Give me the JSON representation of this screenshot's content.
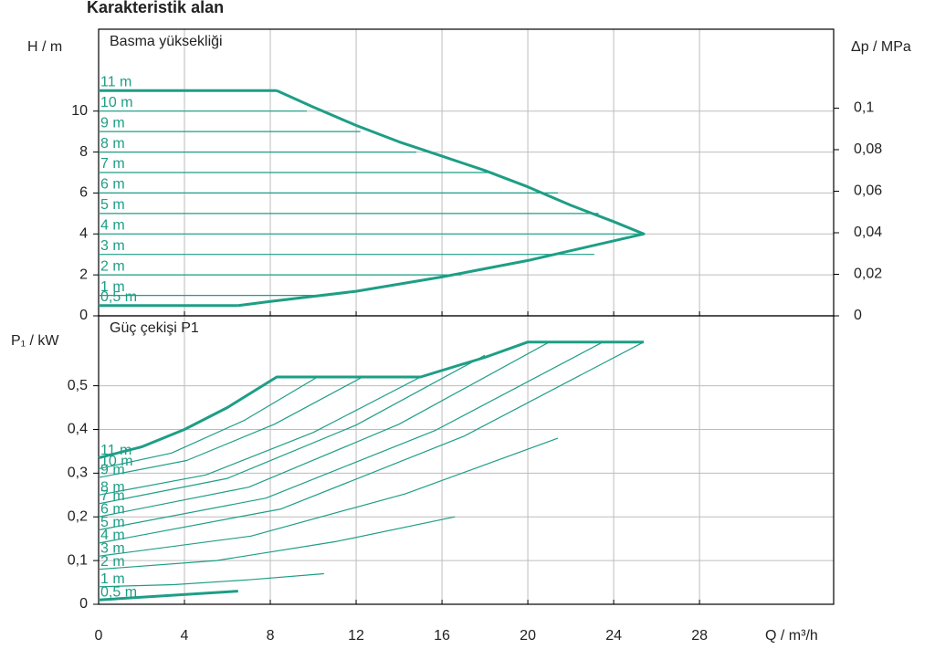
{
  "chart_data": [
    {
      "type": "line",
      "title": "Karakteristik alan",
      "subtitle": "Basma yüksekliği",
      "y_label": "H / m",
      "y2_label": "Δp / MPa",
      "xlim": [
        0,
        34.25
      ],
      "xticks": [
        0,
        4,
        8,
        12,
        16,
        20,
        24,
        28
      ],
      "ylim": [
        0,
        14
      ],
      "yticks": [
        0,
        2,
        4,
        6,
        8,
        10
      ],
      "y2lim": [
        0,
        0.138
      ],
      "y2ticks": [
        {
          "value": 0,
          "label": "0"
        },
        {
          "value": 0.02,
          "label": "0,02"
        },
        {
          "value": 0.04,
          "label": "0,04"
        },
        {
          "value": 0.06,
          "label": "0,06"
        },
        {
          "value": 0.08,
          "label": "0,08"
        },
        {
          "value": 0.1,
          "label": "0,1"
        }
      ],
      "grid": true,
      "series": [
        {
          "name": "11 m",
          "color": "#1e9e86",
          "line_width": 3,
          "x": [
            0,
            8.3
          ],
          "values": [
            11,
            11
          ]
        },
        {
          "name": "10 m",
          "color": "#1e9e86",
          "line_width": 1.2,
          "x": [
            0,
            9.7
          ],
          "values": [
            10,
            10
          ]
        },
        {
          "name": "9 m",
          "color": "#1e9e86",
          "line_width": 1.2,
          "x": [
            0,
            12.2
          ],
          "values": [
            9,
            9
          ]
        },
        {
          "name": "8 m",
          "color": "#1e9e86",
          "line_width": 1.2,
          "x": [
            0,
            14.8
          ],
          "values": [
            8,
            8
          ]
        },
        {
          "name": "7 m",
          "color": "#1e9e86",
          "line_width": 1.2,
          "x": [
            0,
            18.4
          ],
          "values": [
            7,
            7
          ]
        },
        {
          "name": "6 m",
          "color": "#1e9e86",
          "line_width": 1.2,
          "x": [
            0,
            21.4
          ],
          "values": [
            6,
            6
          ]
        },
        {
          "name": "5 m",
          "color": "#1e9e86",
          "line_width": 1.2,
          "x": [
            0,
            23.3
          ],
          "values": [
            5,
            5
          ]
        },
        {
          "name": "4 m",
          "color": "#1e9e86",
          "line_width": 1.2,
          "x": [
            0,
            25.4
          ],
          "values": [
            4,
            4
          ]
        },
        {
          "name": "3 m",
          "color": "#1e9e86",
          "line_width": 1.2,
          "x": [
            0,
            23.1
          ],
          "values": [
            3,
            3
          ]
        },
        {
          "name": "2 m",
          "color": "#1e9e86",
          "line_width": 1.2,
          "x": [
            0,
            16.9
          ],
          "values": [
            2,
            2
          ]
        },
        {
          "name": "1 m",
          "color": "#1e9e86",
          "line_width": 1.2,
          "x": [
            0,
            10.7
          ],
          "values": [
            1,
            1
          ]
        },
        {
          "name": "0,5 m",
          "color": "#1e9e86",
          "line_width": 3,
          "x": [
            0,
            6.5
          ],
          "values": [
            0.5,
            0.5
          ]
        },
        {
          "color": "#1e9e86",
          "line_width": 3,
          "x": [
            8.3,
            10,
            12,
            14,
            16,
            18,
            20,
            22,
            24,
            25.4,
            20,
            16,
            12,
            8,
            6.5
          ],
          "values": [
            11,
            10.2,
            9.3,
            8.5,
            7.8,
            7.1,
            6.3,
            5.4,
            4.6,
            4,
            2.7,
            1.9,
            1.2,
            0.7,
            0.5
          ]
        }
      ]
    },
    {
      "type": "line",
      "subtitle": "Güç çekişi P1",
      "y_label": "P₁ / kW",
      "x_label": "Q / m³/h",
      "xlim": [
        0,
        34.25
      ],
      "xticks": [
        0,
        4,
        8,
        12,
        16,
        20,
        24,
        28
      ],
      "ylim": [
        0,
        0.66
      ],
      "yticks": [
        0,
        {
          "value": 0.1,
          "label": "0,1"
        },
        {
          "value": 0.2,
          "label": "0,2"
        },
        {
          "value": 0.3,
          "label": "0,3"
        },
        {
          "value": 0.4,
          "label": "0,4"
        },
        {
          "value": 0.5,
          "label": "0,5"
        }
      ],
      "grid": true,
      "series": [
        {
          "name": "11 m",
          "color": "#1e9e86",
          "line_width": 3,
          "x": [
            0,
            2,
            4,
            6,
            8.3,
            15,
            18,
            20,
            25.4
          ],
          "values": [
            0.335,
            0.36,
            0.4,
            0.45,
            0.52,
            0.52,
            0.565,
            0.6,
            0.6
          ]
        },
        {
          "name": "10 m",
          "color": "#1e9e86",
          "line_width": 1.2,
          "x": [
            0,
            3.4,
            6.8,
            10.2
          ],
          "values": [
            0.31,
            0.346,
            0.421,
            0.52
          ]
        },
        {
          "name": "9 m",
          "color": "#1e9e86",
          "line_width": 1.2,
          "x": [
            0,
            4.1,
            8.2,
            12.3
          ],
          "values": [
            0.29,
            0.329,
            0.412,
            0.52
          ]
        },
        {
          "name": "8 m",
          "color": "#1e9e86",
          "line_width": 1.2,
          "x": [
            0,
            5,
            10,
            15
          ],
          "values": [
            0.25,
            0.296,
            0.393,
            0.52
          ]
        },
        {
          "name": "7 m",
          "color": "#1e9e86",
          "line_width": 1.2,
          "x": [
            0,
            6,
            12,
            18
          ],
          "values": [
            0.23,
            0.288,
            0.41,
            0.57
          ]
        },
        {
          "name": "6 m",
          "color": "#1e9e86",
          "line_width": 1.2,
          "x": [
            0,
            7,
            14,
            21
          ],
          "values": [
            0.2,
            0.268,
            0.412,
            0.6
          ]
        },
        {
          "name": "5 m",
          "color": "#1e9e86",
          "line_width": 1.2,
          "x": [
            0,
            7.8,
            15.7,
            23.5
          ],
          "values": [
            0.17,
            0.243,
            0.398,
            0.6
          ]
        },
        {
          "name": "4 m",
          "color": "#1e9e86",
          "line_width": 1.2,
          "x": [
            0,
            8.5,
            17,
            25.4
          ],
          "values": [
            0.14,
            0.218,
            0.384,
            0.6
          ]
        },
        {
          "name": "3 m",
          "color": "#1e9e86",
          "line_width": 1.2,
          "x": [
            0,
            7.1,
            14.3,
            21.4
          ],
          "values": [
            0.11,
            0.156,
            0.253,
            0.38
          ]
        },
        {
          "name": "2 m",
          "color": "#1e9e86",
          "line_width": 1.2,
          "x": [
            0,
            5.5,
            11.1,
            16.6
          ],
          "values": [
            0.08,
            0.1,
            0.144,
            0.2
          ]
        },
        {
          "name": "1 m",
          "color": "#1e9e86",
          "line_width": 1.2,
          "x": [
            0,
            3.5,
            7,
            10.5
          ],
          "values": [
            0.04,
            0.045,
            0.056,
            0.07
          ]
        },
        {
          "name": "0,5 m",
          "color": "#1e9e86",
          "line_width": 3,
          "x": [
            0,
            6.5
          ],
          "values": [
            0.01,
            0.03
          ]
        }
      ]
    }
  ]
}
